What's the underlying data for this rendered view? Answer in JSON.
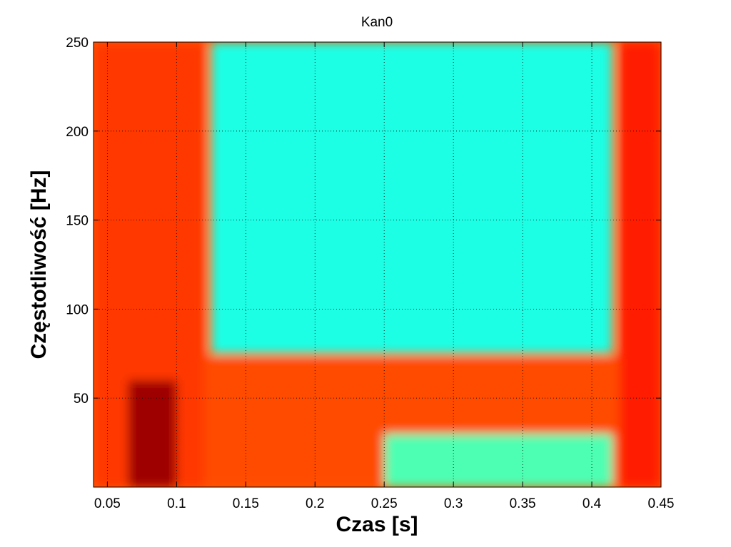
{
  "chart_data": {
    "type": "heatmap",
    "title": "Kan0",
    "xlabel": "Czas [s]",
    "ylabel": "Częstotliwość [Hz]",
    "xlim": [
      0.04,
      0.45
    ],
    "ylim": [
      0,
      250
    ],
    "xticks": [
      0.05,
      0.1,
      0.15,
      0.2,
      0.25,
      0.3,
      0.35,
      0.4,
      0.45
    ],
    "xtick_labels": [
      "0.05",
      "0.1",
      "0.15",
      "0.2",
      "0.25",
      "0.3",
      "0.35",
      "0.4",
      "0.45"
    ],
    "yticks": [
      50,
      100,
      150,
      200,
      250
    ],
    "ytick_labels": [
      "50",
      "100",
      "150",
      "200",
      "250"
    ],
    "grid": true,
    "colormap": "jet",
    "regions": [
      {
        "name": "left-high-band",
        "t": [
          0.04,
          0.12
        ],
        "f": [
          0,
          250
        ],
        "level": 0.82
      },
      {
        "name": "left-peak",
        "t": [
          0.065,
          0.1
        ],
        "f": [
          0,
          60
        ],
        "level": 0.97
      },
      {
        "name": "mid-low-band",
        "t": [
          0.12,
          0.42
        ],
        "f": [
          0,
          72
        ],
        "level": 0.8
      },
      {
        "name": "mid-high-field",
        "t": [
          0.125,
          0.415
        ],
        "f": [
          75,
          250
        ],
        "level": 0.4
      },
      {
        "name": "mid-low-field",
        "t": [
          0.25,
          0.415
        ],
        "f": [
          0,
          30
        ],
        "level": 0.45
      },
      {
        "name": "right-high-band",
        "t": [
          0.42,
          0.45
        ],
        "f": [
          0,
          250
        ],
        "level": 0.85
      }
    ]
  }
}
